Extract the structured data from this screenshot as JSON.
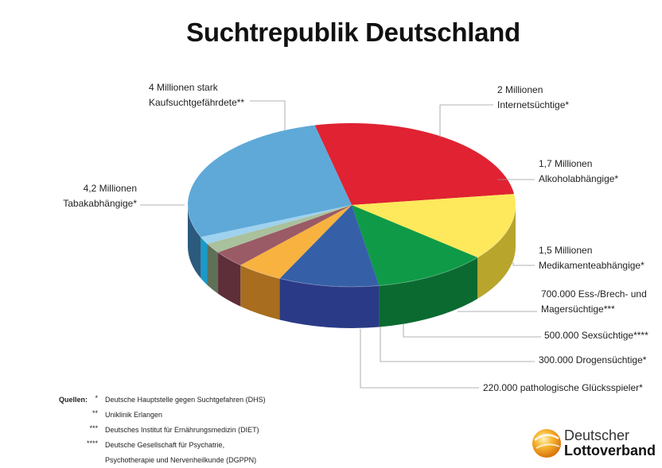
{
  "title": "Suchtrepublik Deutschland",
  "chart_data": {
    "type": "pie",
    "title": "Suchtrepublik Deutschland",
    "slices": [
      {
        "label_lines": [
          "4 Millionen stark",
          "Kaufsuchtgefährdete**"
        ],
        "value": 4000000,
        "color": "#e02232",
        "side_color": "#9c1520"
      },
      {
        "label_lines": [
          "2 Millionen",
          "Internetsüchtige*"
        ],
        "value": 2000000,
        "color": "#fde95b",
        "side_color": "#b8a52c"
      },
      {
        "label_lines": [
          "1,7 Millionen",
          "Alkoholabhängige*"
        ],
        "value": 1700000,
        "color": "#0f9a48",
        "side_color": "#0a6a30"
      },
      {
        "label_lines": [
          "1,5 Millionen",
          "Medikamenteabhängige*"
        ],
        "value": 1500000,
        "color": "#3560a8",
        "side_color": "#2b3a86"
      },
      {
        "label_lines": [
          "700.000 Ess-/Brech- und",
          "Magersüchtige***"
        ],
        "value": 700000,
        "color": "#f7b240",
        "side_color": "#a86d1e"
      },
      {
        "label_lines": [
          "500.000 Sexsüchtige****"
        ],
        "value": 500000,
        "color": "#9a5a66",
        "side_color": "#5e2f38"
      },
      {
        "label_lines": [
          "300.000 Drogensüchtige*"
        ],
        "value": 300000,
        "color": "#a9c19d",
        "side_color": "#5e7058"
      },
      {
        "label_lines": [
          "220.000 pathologische Glücksspieler*"
        ],
        "value": 220000,
        "color": "#9fd2ee",
        "side_color": "#1a9ac8"
      },
      {
        "label_lines": [
          "4,2 Millionen",
          "Tabakabhängige*"
        ],
        "value": 4200000,
        "color": "#5ea9d8",
        "side_color": "#2b5a7e"
      }
    ]
  },
  "sources": {
    "heading": "Quellen:",
    "items": [
      {
        "mark": "*",
        "text": "Deutsche Hauptstelle gegen Suchtgefahren (DHS)"
      },
      {
        "mark": "**",
        "text": "Uniklinik Erlangen"
      },
      {
        "mark": "***",
        "text": "Deutsches Institut für Ernährungsmedizin (DIET)"
      },
      {
        "mark": "****",
        "text": "Deutsche Gesellschaft für Psychatrie,"
      },
      {
        "mark": "",
        "text": "Psychotherapie und Nervenheilkunde (DGPPN)"
      }
    ]
  },
  "logo": {
    "line1": "Deutscher",
    "line2": "Lottoverband"
  }
}
